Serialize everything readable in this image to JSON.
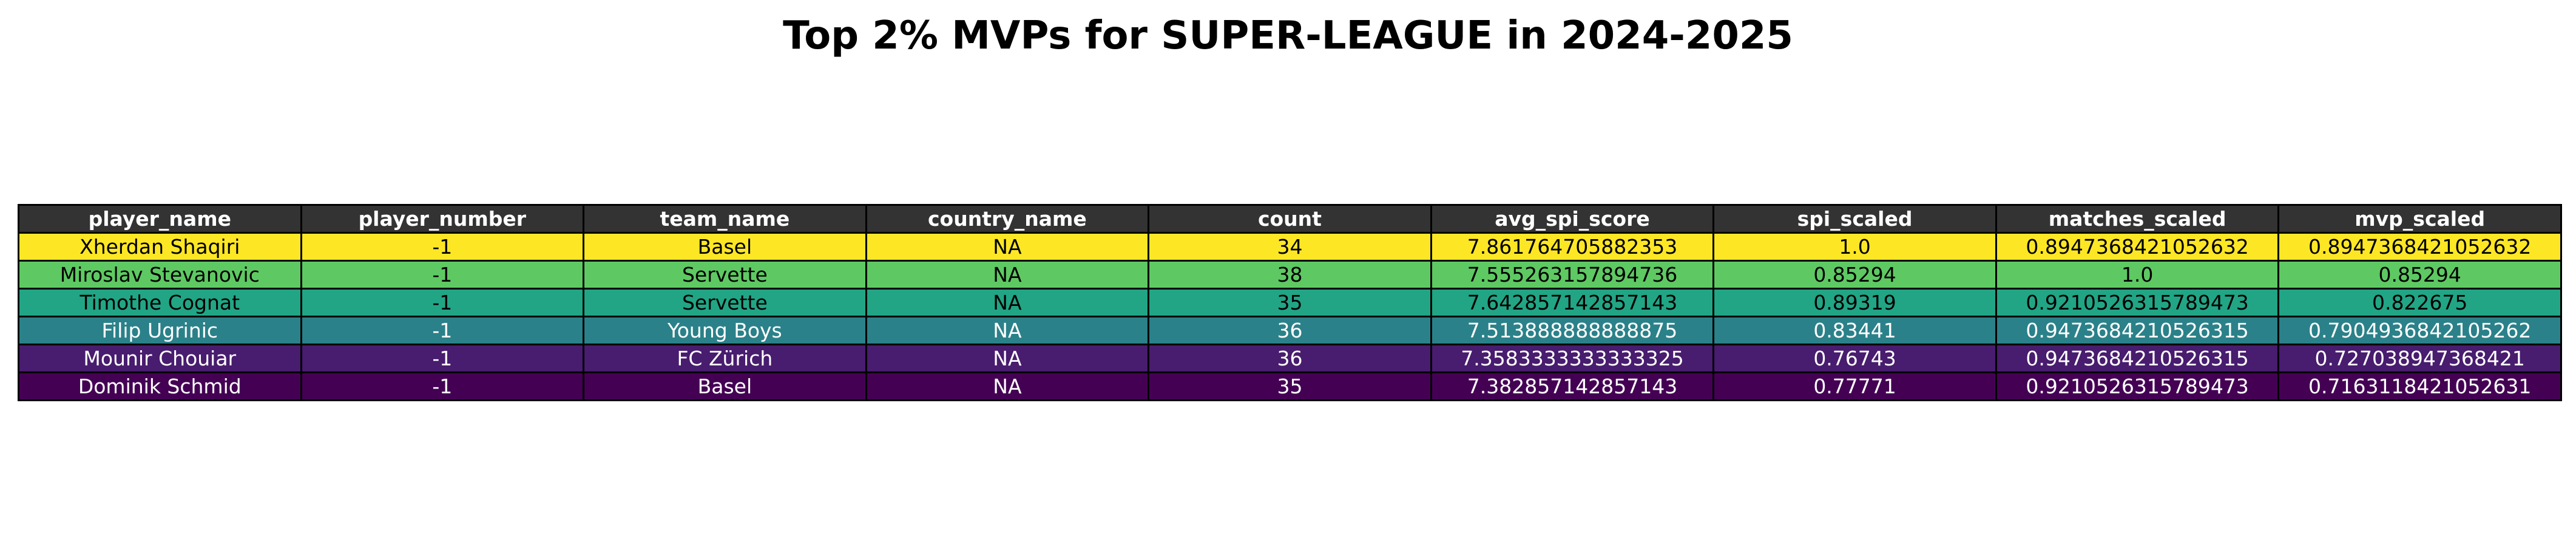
{
  "chart_data": {
    "type": "table",
    "title": "Top 2% MVPs for SUPER-LEAGUE in 2024-2025",
    "columns": [
      "player_name",
      "player_number",
      "team_name",
      "country_name",
      "count",
      "avg_spi_score",
      "spi_scaled",
      "matches_scaled",
      "mvp_scaled"
    ],
    "rows": [
      {
        "cells": [
          "Xherdan Shaqiri",
          "-1",
          "Basel",
          "NA",
          "34",
          "7.861764705882353",
          "1.0",
          "0.8947368421052632",
          "0.8947368421052632"
        ],
        "bg": "#fde725",
        "fg": "#000000"
      },
      {
        "cells": [
          "Miroslav Stevanovic",
          "-1",
          "Servette",
          "NA",
          "38",
          "7.555263157894736",
          "0.85294",
          "1.0",
          "0.85294"
        ],
        "bg": "#5ec962",
        "fg": "#000000"
      },
      {
        "cells": [
          "Timothe Cognat",
          "-1",
          "Servette",
          "NA",
          "35",
          "7.642857142857143",
          "0.89319",
          "0.9210526315789473",
          "0.822675"
        ],
        "bg": "#21a585",
        "fg": "#000000"
      },
      {
        "cells": [
          "Filip Ugrinic",
          "-1",
          "Young Boys",
          "NA",
          "36",
          "7.513888888888875",
          "0.83441",
          "0.9473684210526315",
          "0.7904936842105262"
        ],
        "bg": "#2b8189",
        "fg": "#ffffff"
      },
      {
        "cells": [
          "Mounir Chouiar",
          "-1",
          "FC Zürich",
          "NA",
          "36",
          "7.3583333333333325",
          "0.76743",
          "0.9473684210526315",
          "0.727038947368421"
        ],
        "bg": "#481c6e",
        "fg": "#ffffff"
      },
      {
        "cells": [
          "Dominik Schmid",
          "-1",
          "Basel",
          "NA",
          "35",
          "7.382857142857143",
          "0.77771",
          "0.9210526315789473",
          "0.7163118421052631"
        ],
        "bg": "#440154",
        "fg": "#ffffff"
      }
    ],
    "header_bg": "#333333",
    "header_fg": "#ffffff"
  }
}
